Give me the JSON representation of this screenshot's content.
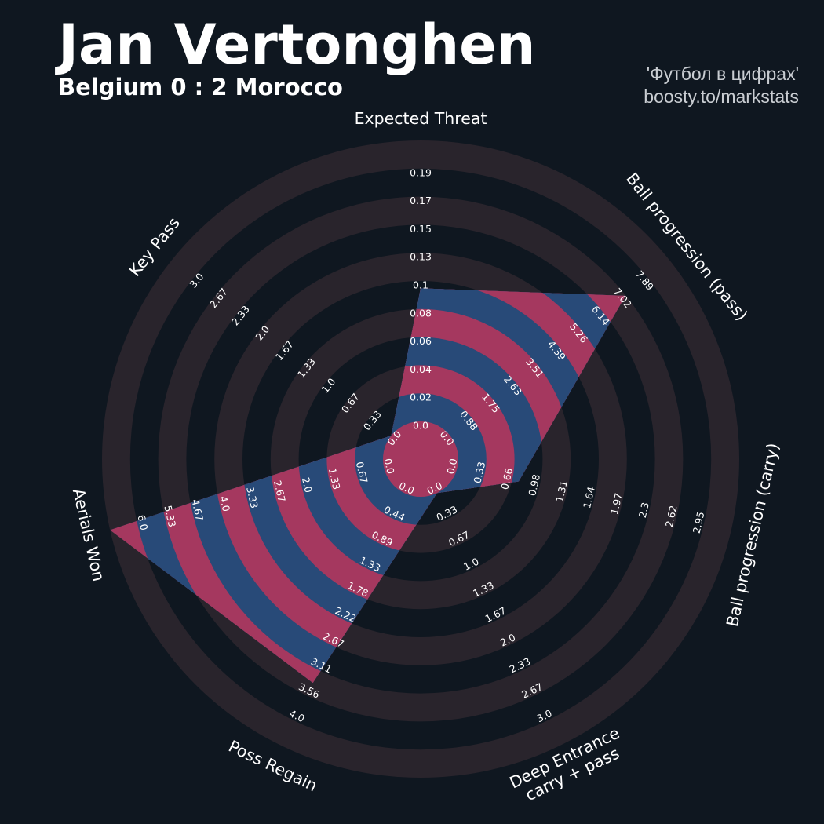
{
  "header": {
    "player": "Jan Vertonghen",
    "match": "Belgium 0 : 2 Morocco"
  },
  "credit": {
    "line1": "'Футбол в цифрах'",
    "line2": "boosty.to/markstats"
  },
  "colors": {
    "background": "#0f1720",
    "ring_band": "#29242c",
    "value_blue": "#284a78",
    "value_red": "#a5385f",
    "text": "#ffffff"
  },
  "chart_data": {
    "type": "radar",
    "title": "Jan Vertonghen",
    "subtitle": "Belgium 0 : 2 Morocco",
    "params": [
      {
        "name": "Expected Threat",
        "lines": [
          "Expected Threat"
        ],
        "value": 0.09,
        "ticks": [
          "0.0",
          "0.02",
          "0.04",
          "0.06",
          "0.08",
          "0.1",
          "0.13",
          "0.15",
          "0.17",
          "0.19"
        ]
      },
      {
        "name": "Ball progression (pass)",
        "lines": [
          "Ball progression (pass)"
        ],
        "value": 6.3,
        "ticks": [
          "0.0",
          "0.88",
          "1.75",
          "2.63",
          "3.51",
          "4.39",
          "5.26",
          "6.14",
          "7.02",
          "7.89"
        ]
      },
      {
        "name": "Ball progression (carry)",
        "lines": [
          "Ball progression (carry)"
        ],
        "value": 0.66,
        "ticks": [
          "0.0",
          "0.33",
          "0.66",
          "0.98",
          "1.31",
          "1.64",
          "1.97",
          "2.3",
          "2.62",
          "2.95"
        ]
      },
      {
        "name": "Deep Entrance carry + pass",
        "lines": [
          "Deep Entrance",
          "carry + pass"
        ],
        "value": 0.0,
        "ticks": [
          "0.0",
          "0.33",
          "0.67",
          "1.0",
          "1.33",
          "1.67",
          "2.0",
          "2.33",
          "2.67",
          "3.0"
        ]
      },
      {
        "name": "Poss Regain",
        "lines": [
          "Poss Regain"
        ],
        "value": 3.0,
        "ticks": [
          "0.0",
          "0.44",
          "0.89",
          "1.33",
          "1.78",
          "2.22",
          "2.67",
          "3.11",
          "3.56",
          "4.0"
        ]
      },
      {
        "name": "Aerials Won",
        "lines": [
          "Aerials Won"
        ],
        "value": 6.0,
        "ticks": [
          "0.0",
          "0.67",
          "1.33",
          "2.0",
          "2.67",
          "3.33",
          "4.0",
          "4.67",
          "5.33",
          "6.0"
        ]
      },
      {
        "name": "Key Pass",
        "lines": [
          "Key Pass"
        ],
        "value": 0.0,
        "ticks": [
          "0.0",
          "0.33",
          "0.67",
          "1.0",
          "1.33",
          "1.67",
          "2.0",
          "2.33",
          "2.67",
          "3.0"
        ]
      }
    ]
  }
}
